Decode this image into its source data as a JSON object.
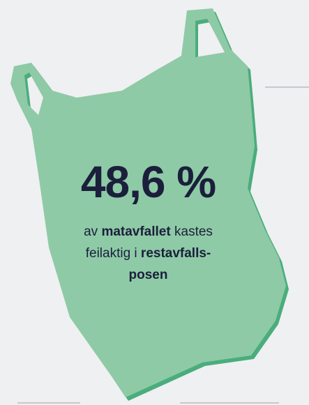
{
  "stat": "48,6 %",
  "lines": [
    [
      {
        "text": "av ",
        "bold": false
      },
      {
        "text": "matavfallet",
        "bold": true
      },
      {
        "text": " kastes",
        "bold": false
      }
    ],
    [
      {
        "text": "feilaktig i ",
        "bold": false
      },
      {
        "text": "restavfalls-",
        "bold": true
      }
    ],
    [
      {
        "text": "posen",
        "bold": true
      }
    ]
  ]
}
